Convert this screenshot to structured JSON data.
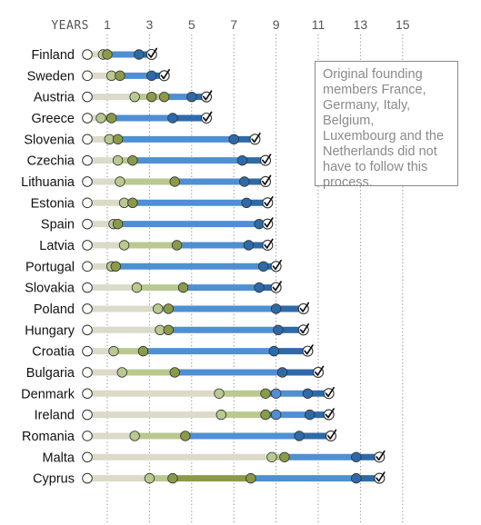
{
  "note": "Original founding members France, Germany, Italy, Belgium, Luxembourg and the Netherlands did not have to follow this process.",
  "colors": {
    "stage1": "#dcdac8",
    "stage2": "#b9c98f",
    "stage2_dark": "#8b9a4a",
    "stage3": "#4f8fd4",
    "stage4": "#2e6aa8",
    "check_ring": "#333333",
    "grid": "#888888"
  },
  "chart_data": {
    "type": "timeline",
    "title": "",
    "xlabel": "YEARS",
    "ylabel": "",
    "xlim": [
      -0.6,
      16.6
    ],
    "xticks": [
      1,
      3,
      5,
      7,
      9,
      11,
      13,
      15
    ],
    "grid": true,
    "stage_colors": [
      "#dcdac8",
      "#b9c98f",
      "#4f8fd4",
      "#2e6aa8"
    ],
    "rows": [
      {
        "country": "Finland",
        "points": [
          0,
          0.8,
          1.0,
          2.5,
          3.1
        ],
        "stages": [
          "stage1",
          "stage2",
          "stage3",
          "stage4"
        ]
      },
      {
        "country": "Sweden",
        "points": [
          0,
          1.2,
          1.6,
          3.1,
          3.7
        ],
        "stages": [
          "stage1",
          "stage2",
          "stage3",
          "stage4"
        ]
      },
      {
        "country": "Austria",
        "points": [
          0,
          2.3,
          3.1,
          3.7,
          5.0,
          5.7
        ],
        "stages": [
          "stage1",
          "stage2",
          "stage2",
          "stage3",
          "stage4"
        ]
      },
      {
        "country": "Greece",
        "points": [
          0,
          0.7,
          1.2,
          4.1,
          5.7
        ],
        "stages": [
          "stage1",
          "stage2",
          "stage3",
          "stage4"
        ]
      },
      {
        "country": "Slovenia",
        "points": [
          0,
          1.1,
          1.5,
          7.0,
          8.0
        ],
        "stages": [
          "stage1",
          "stage2",
          "stage3",
          "stage4"
        ]
      },
      {
        "country": "Czechia",
        "points": [
          0,
          1.5,
          2.2,
          7.4,
          8.5
        ],
        "stages": [
          "stage1",
          "stage2",
          "stage3",
          "stage4"
        ]
      },
      {
        "country": "Lithuania",
        "points": [
          0,
          1.6,
          4.2,
          7.5,
          8.5
        ],
        "stages": [
          "stage1",
          "stage2",
          "stage3",
          "stage4"
        ]
      },
      {
        "country": "Estonia",
        "points": [
          0,
          1.8,
          2.2,
          7.6,
          8.6
        ],
        "stages": [
          "stage1",
          "stage2",
          "stage3",
          "stage4"
        ]
      },
      {
        "country": "Spain",
        "points": [
          0,
          1.3,
          1.5,
          8.2,
          8.6
        ],
        "stages": [
          "stage1",
          "stage2",
          "stage3",
          "stage4"
        ]
      },
      {
        "country": "Latvia",
        "points": [
          0,
          1.8,
          4.3,
          7.7,
          8.6
        ],
        "stages": [
          "stage1",
          "stage2",
          "stage3",
          "stage4"
        ]
      },
      {
        "country": "Portugal",
        "points": [
          0,
          1.2,
          1.4,
          8.4,
          9.0
        ],
        "stages": [
          "stage1",
          "stage2",
          "stage3",
          "stage4"
        ]
      },
      {
        "country": "Slovakia",
        "points": [
          0,
          2.4,
          4.6,
          8.2,
          9.0
        ],
        "stages": [
          "stage1",
          "stage2",
          "stage3",
          "stage4"
        ]
      },
      {
        "country": "Poland",
        "points": [
          0,
          3.4,
          3.9,
          9.0,
          10.3
        ],
        "stages": [
          "stage1",
          "stage2",
          "stage3",
          "stage4"
        ]
      },
      {
        "country": "Hungary",
        "points": [
          0,
          3.5,
          3.9,
          9.1,
          10.3
        ],
        "stages": [
          "stage1",
          "stage2",
          "stage3",
          "stage4"
        ]
      },
      {
        "country": "Croatia",
        "points": [
          0,
          1.3,
          2.7,
          8.9,
          10.5
        ],
        "stages": [
          "stage1",
          "stage2",
          "stage3",
          "stage4"
        ]
      },
      {
        "country": "Bulgaria",
        "points": [
          0,
          1.7,
          4.2,
          9.3,
          11.0
        ],
        "stages": [
          "stage1",
          "stage2",
          "stage3",
          "stage4"
        ]
      },
      {
        "country": "Denmark",
        "points": [
          0,
          6.3,
          8.5,
          9.0,
          10.5,
          11.5
        ],
        "stages": [
          "stage1",
          "stage2",
          "stage3",
          "stage3",
          "stage4"
        ]
      },
      {
        "country": "Ireland",
        "points": [
          0,
          6.4,
          8.5,
          9.0,
          10.6,
          11.5
        ],
        "stages": [
          "stage1",
          "stage2",
          "stage3",
          "stage3",
          "stage4"
        ]
      },
      {
        "country": "Romania",
        "points": [
          0,
          2.3,
          4.7,
          10.1,
          11.6
        ],
        "stages": [
          "stage1",
          "stage2",
          "stage3",
          "stage4"
        ]
      },
      {
        "country": "Malta",
        "points": [
          0,
          8.8,
          9.4,
          12.8,
          13.9
        ],
        "stages": [
          "stage1",
          "stage2",
          "stage3",
          "stage4"
        ]
      },
      {
        "country": "Cyprus",
        "points": [
          0,
          3.0,
          4.1,
          7.8,
          12.8,
          13.9
        ],
        "stages": [
          "stage1",
          "stage2",
          "stage2_dark",
          "stage3",
          "stage4"
        ]
      }
    ]
  }
}
